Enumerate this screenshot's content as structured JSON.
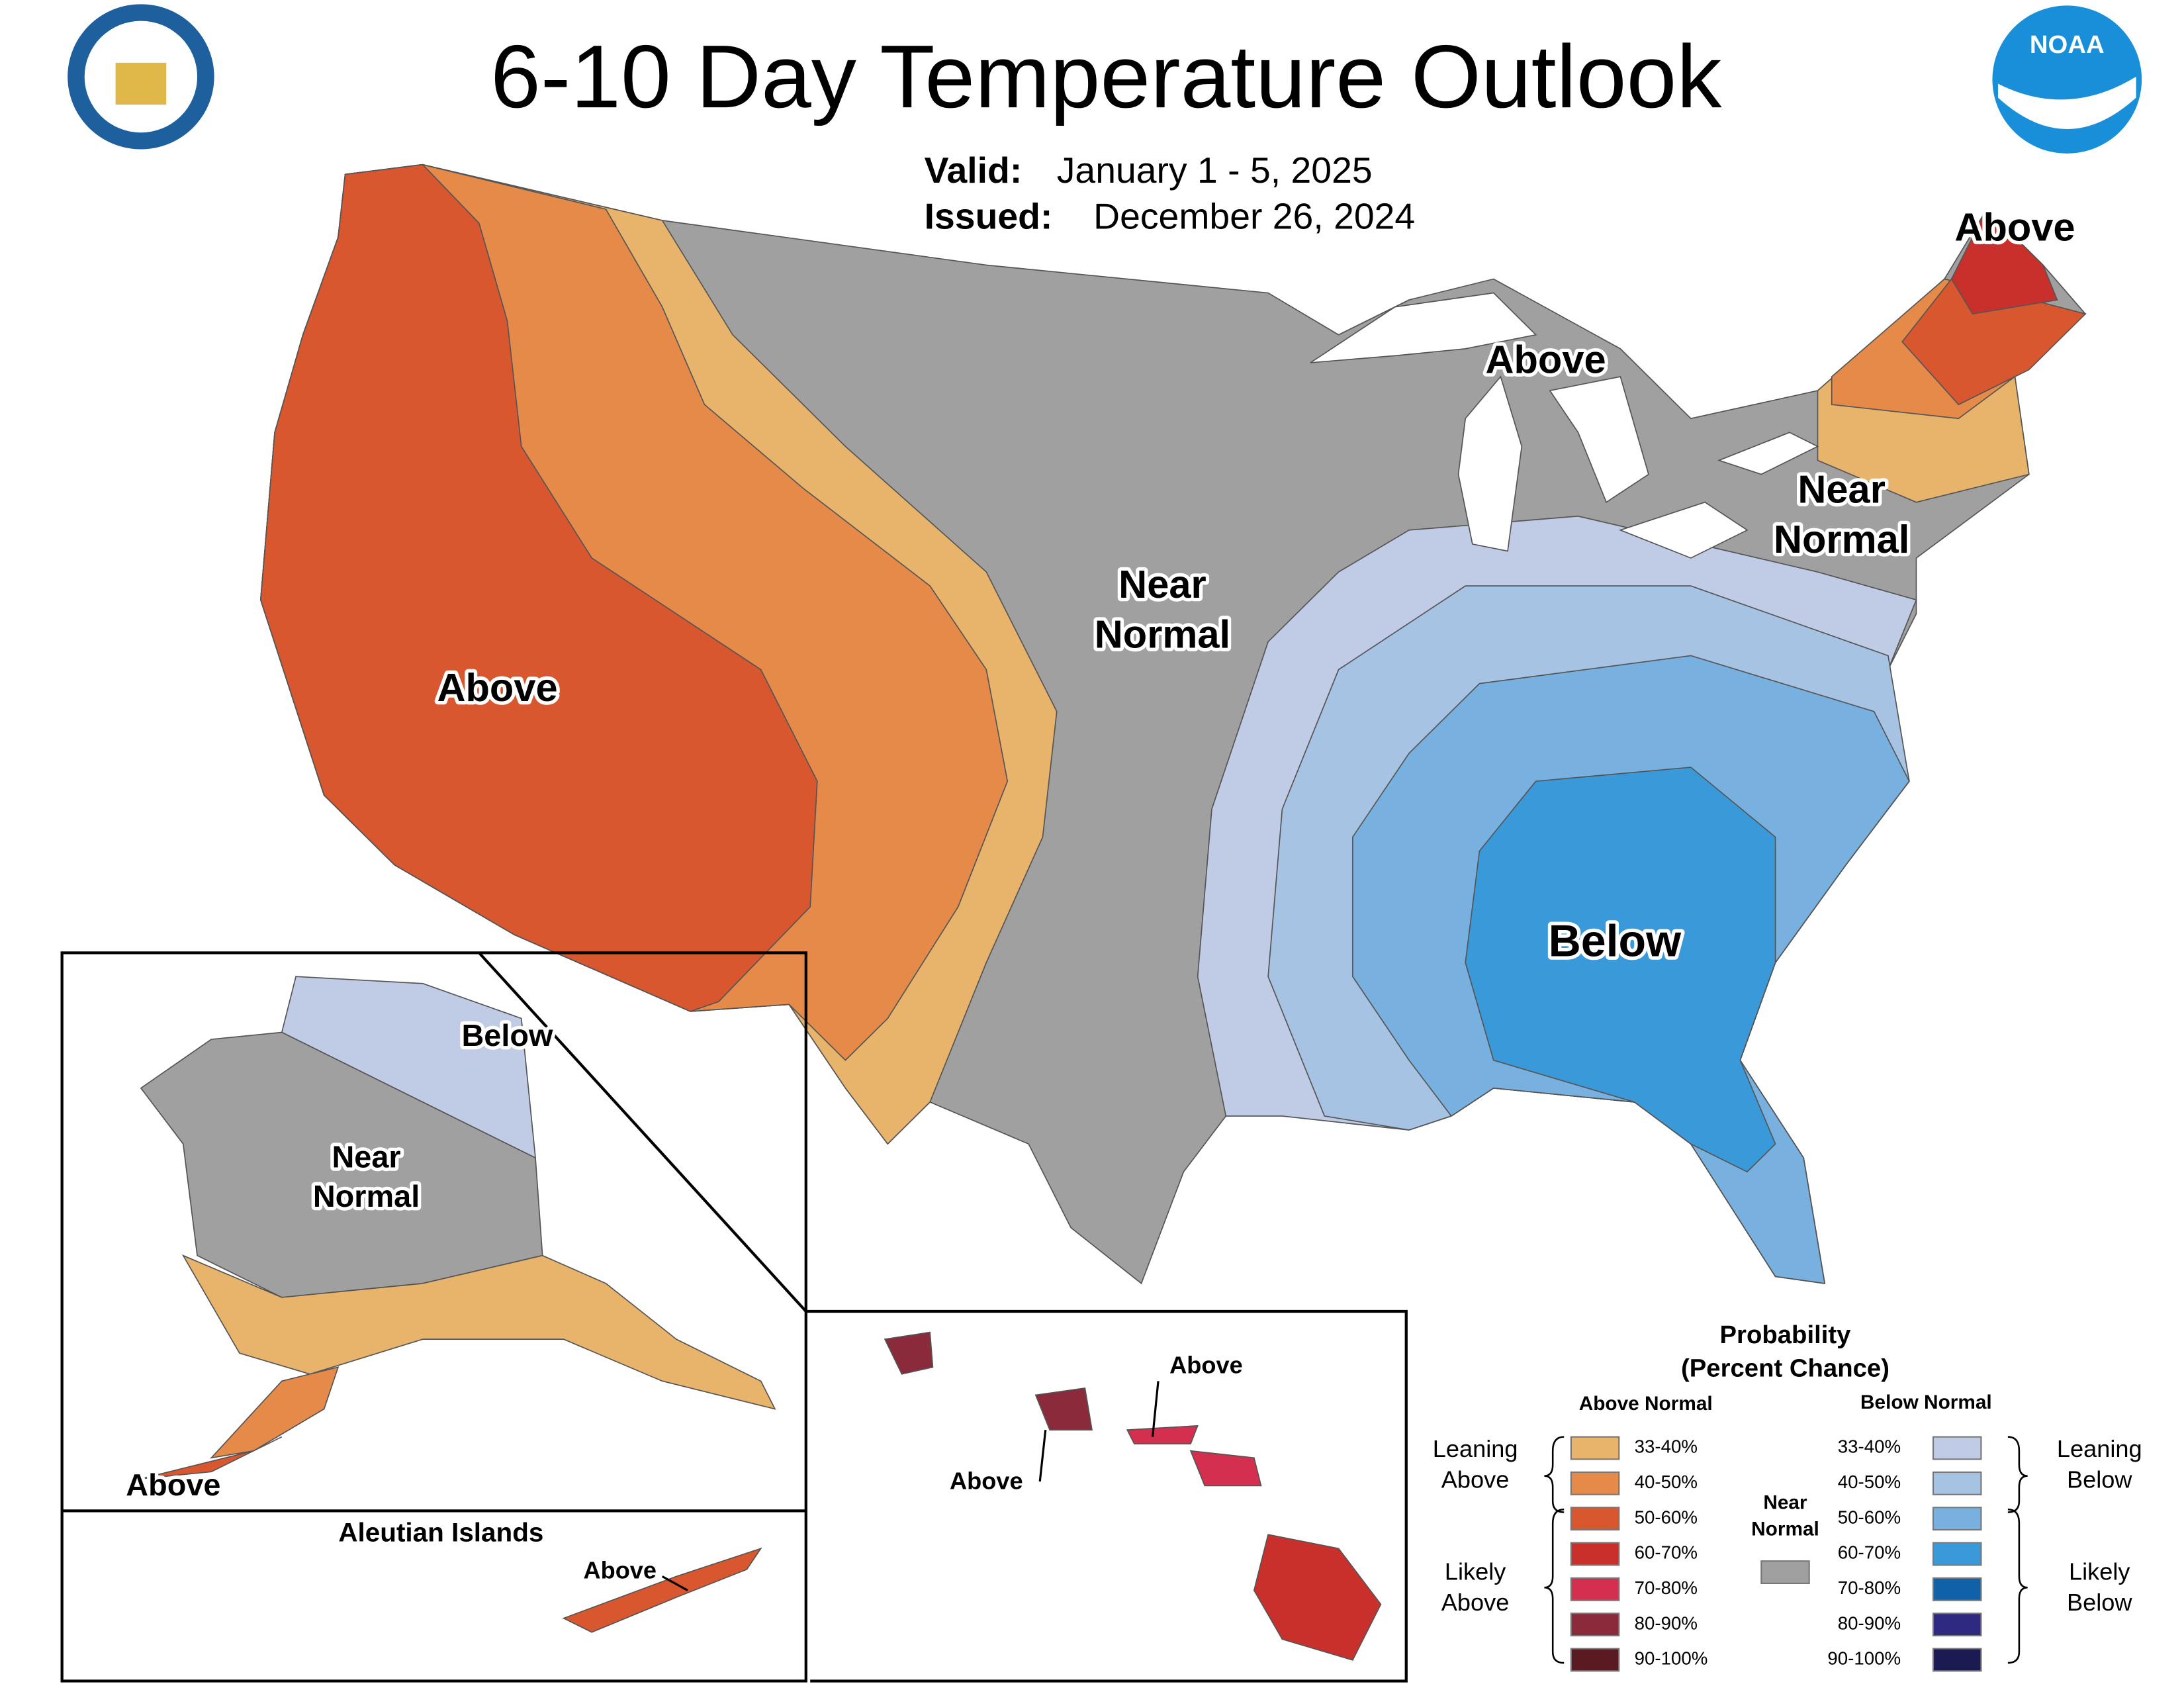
{
  "header": {
    "title": "6-10 Day Temperature Outlook",
    "valid_label": "Valid:",
    "valid": "January 1 - 5, 2025",
    "issued_label": "Issued:",
    "issued": "December 26, 2024"
  },
  "map_labels": [
    {
      "lines": [
        "Above"
      ]
    },
    {
      "lines": [
        "Above"
      ]
    },
    {
      "lines": [
        "Near",
        "Normal"
      ]
    },
    {
      "lines": [
        "Near",
        "Normal"
      ]
    },
    {
      "lines": [
        "Above"
      ]
    },
    {
      "lines": [
        "Below"
      ]
    },
    {
      "lines": [
        "Below"
      ]
    },
    {
      "lines": [
        "Near",
        "Normal"
      ]
    },
    {
      "lines": [
        "Above"
      ]
    },
    {
      "lines": [
        "Above"
      ]
    },
    {
      "lines": [
        "Above"
      ]
    },
    {
      "lines": [
        "Above"
      ]
    }
  ],
  "insets": {
    "aleutian_title": "Aleutian Islands"
  },
  "legend": {
    "title": "Probability",
    "subtitle": "(Percent Chance)",
    "above_heading": "Above Normal",
    "below_heading": "Below Normal",
    "leaning_above": [
      "Leaning",
      "Above"
    ],
    "likely_above": [
      "Likely",
      "Above"
    ],
    "leaning_below": [
      "Leaning",
      "Below"
    ],
    "likely_below": [
      "Likely",
      "Below"
    ],
    "near": {
      "lines": [
        "Near",
        "Normal"
      ],
      "color": "#a0a0a0"
    },
    "above": [
      {
        "label": "33-40%",
        "color": "#e8b46b"
      },
      {
        "label": "40-50%",
        "color": "#e68a4a"
      },
      {
        "label": "50-60%",
        "color": "#d9572f"
      },
      {
        "label": "60-70%",
        "color": "#c9302c"
      },
      {
        "label": "70-80%",
        "color": "#d42f4f"
      },
      {
        "label": "80-90%",
        "color": "#8a2a3a"
      },
      {
        "label": "90-100%",
        "color": "#5a1a22"
      }
    ],
    "below": [
      {
        "label": "33-40%",
        "color": "#c0cce5"
      },
      {
        "label": "40-50%",
        "color": "#a6c3e3"
      },
      {
        "label": "50-60%",
        "color": "#78b1e0"
      },
      {
        "label": "60-70%",
        "color": "#3a9ad9"
      },
      {
        "label": "70-80%",
        "color": "#0f62a8"
      },
      {
        "label": "80-90%",
        "color": "#2e2a82"
      },
      {
        "label": "90-100%",
        "color": "#1c1a52"
      }
    ]
  }
}
